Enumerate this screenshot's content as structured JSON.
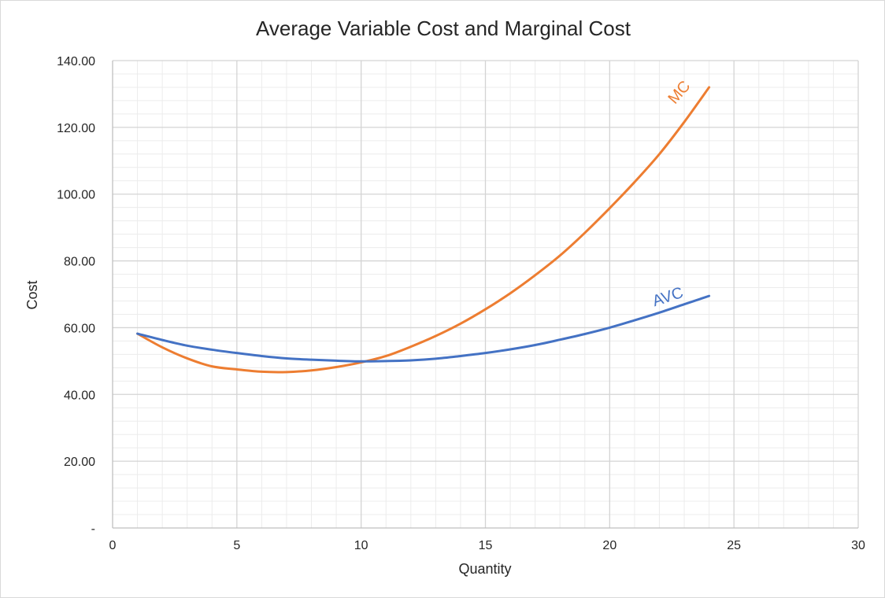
{
  "chart_data": {
    "type": "line",
    "title": "Average Variable Cost and Marginal Cost",
    "xlabel": "Quantity",
    "ylabel": "Cost",
    "xlim": [
      0,
      30
    ],
    "ylim": [
      0,
      140
    ],
    "x_ticks": [
      "0",
      "5",
      "10",
      "15",
      "20",
      "25",
      "30"
    ],
    "y_ticks": [
      "-",
      "20.00",
      "40.00",
      "60.00",
      "80.00",
      "100.00",
      "120.00",
      "140.00"
    ],
    "grid": true,
    "series": [
      {
        "name": "MC",
        "color": "#ED7D31",
        "x": [
          1,
          2,
          3,
          4,
          5,
          6,
          7,
          8,
          9,
          10,
          11,
          12,
          13,
          14,
          15,
          16,
          17,
          18,
          19,
          20,
          21,
          22,
          23,
          24
        ],
        "y": [
          58.2,
          54.1,
          50.8,
          48.4,
          47.5,
          46.8,
          46.7,
          47.2,
          48.2,
          49.6,
          51.5,
          54.3,
          57.5,
          61.2,
          65.5,
          70.3,
          75.7,
          81.6,
          88.4,
          95.8,
          103.6,
          112.0,
          121.6,
          132.0
        ]
      },
      {
        "name": "AVC",
        "color": "#4472C4",
        "x": [
          1,
          2,
          3,
          4,
          5,
          6,
          7,
          8,
          9,
          10,
          11,
          12,
          13,
          14,
          15,
          16,
          17,
          18,
          19,
          20,
          21,
          22,
          23,
          24
        ],
        "y": [
          58.2,
          56.3,
          54.6,
          53.4,
          52.4,
          51.5,
          50.8,
          50.4,
          50.1,
          49.9,
          50.0,
          50.2,
          50.7,
          51.5,
          52.4,
          53.5,
          54.8,
          56.4,
          58.1,
          60.0,
          62.2,
          64.5,
          67.0,
          69.5
        ]
      }
    ],
    "series_labels": [
      {
        "text": "MC",
        "color": "#ED7D31",
        "x": 22.95,
        "y": 129.5,
        "angle": -49
      },
      {
        "text": "AVC",
        "color": "#4472C4",
        "x": 22.4,
        "y": 67.8,
        "angle": -18
      }
    ]
  }
}
